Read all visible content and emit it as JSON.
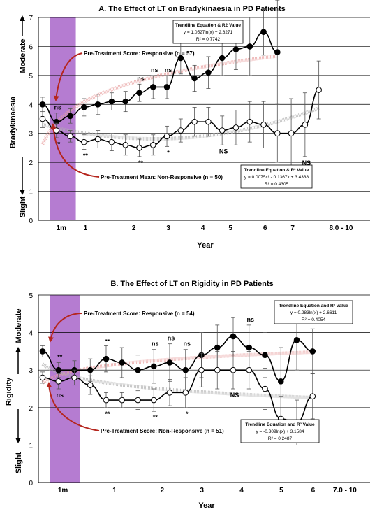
{
  "chart_data": [
    {
      "type": "line",
      "title": "A. The Effect of LT on Bradykinaesia in PD Patients",
      "xlabel": "Year",
      "ylabel": "Bradykinaesia",
      "ylim": [
        0,
        7
      ],
      "yticks": [
        0,
        1,
        2,
        3,
        4,
        5,
        6,
        7
      ],
      "severity_labels": {
        "top": "Moderate",
        "bottom": "Slight"
      },
      "x_tick_labels": [
        "1m",
        "1",
        "2",
        "3",
        "4",
        "5",
        "6",
        "7",
        "8.0 - 10"
      ],
      "x_tick_positions": [
        0.75,
        2.5,
        6,
        8.5,
        11,
        13,
        15.5,
        17.5,
        21
      ],
      "xlim": [
        0,
        23
      ],
      "band": [
        0,
        2
      ],
      "grid": true,
      "series": [
        {
          "name": "Responsive",
          "fill": "#000000",
          "x": [
            0,
            1,
            2,
            3,
            4,
            5,
            6,
            7,
            8,
            9,
            10,
            11,
            12,
            13,
            14,
            15,
            16,
            17,
            18
          ],
          "y": [
            4.0,
            3.4,
            3.6,
            3.9,
            4.0,
            4.1,
            4.1,
            4.4,
            4.6,
            4.6,
            5.6,
            4.9,
            5.1,
            5.6,
            5.9,
            6.0,
            6.5,
            5.8,
            null
          ],
          "err": [
            0.25,
            0.3,
            0.25,
            0.3,
            0.35,
            0.3,
            0.35,
            0.3,
            0.4,
            0.4,
            0.55,
            0.45,
            0.55,
            0.6,
            0.7,
            1.0,
            0.8,
            1.8,
            0
          ],
          "labels": [
            null,
            "ns",
            null,
            null,
            null,
            null,
            null,
            "ns",
            "ns",
            "ns",
            null,
            null,
            null,
            "ns",
            null,
            null,
            null,
            null,
            null
          ]
        },
        {
          "name": "Non-Responsive",
          "fill": "#ffffff",
          "x": [
            0,
            1,
            2,
            3,
            4,
            5,
            6,
            7,
            8,
            9,
            10,
            11,
            12,
            13,
            14,
            15,
            16,
            17,
            18,
            19,
            20
          ],
          "y": [
            3.5,
            3.1,
            2.9,
            2.7,
            2.8,
            2.7,
            2.6,
            2.5,
            2.6,
            2.9,
            3.1,
            3.4,
            3.4,
            3.1,
            3.2,
            3.4,
            3.3,
            3.0,
            3.0,
            3.3,
            4.5
          ],
          "err": [
            0.3,
            0.25,
            0.2,
            0.25,
            0.3,
            0.3,
            0.35,
            0.3,
            0.35,
            0.35,
            0.4,
            0.5,
            0.5,
            0.5,
            0.6,
            0.7,
            0.8,
            1.0,
            1.2,
            1.1,
            1.0
          ],
          "labels": [
            null,
            "**",
            null,
            "**",
            null,
            null,
            null,
            "**",
            null,
            "*",
            null,
            null,
            null,
            "NS",
            null,
            null,
            null,
            "NS",
            null,
            "NS",
            null
          ]
        }
      ],
      "trendlines": [
        {
          "series": "Responsive",
          "color": "#e8a0a0",
          "lines": [
            "Trendline Equation  & R2 Value",
            "y = 1.0527ln(x) + 2.6271",
            "R² = 0.7742"
          ]
        },
        {
          "series": "Non-Responsive",
          "color": "#b0b0b0",
          "lines": [
            "Trendline Equation  & R² Value",
            "y = 0.0075x² - 0.1367x + 3.4338",
            "R² = 0.4305"
          ]
        }
      ],
      "annotations": [
        "Pre-Treatment Score: Responsive (n = 57)",
        "Pre-Treatment Mean: Non-Responsive (n = 50)"
      ]
    },
    {
      "type": "line",
      "title": "B. The Effect of LT on Rigidity in PD Patients",
      "xlabel": "Year",
      "ylabel": "Rigidity",
      "ylim": [
        0,
        5
      ],
      "yticks": [
        0,
        1,
        2,
        3,
        4,
        5
      ],
      "severity_labels": {
        "top": "Moderate",
        "bottom": "Slight"
      },
      "x_tick_labels": [
        "1m",
        "1",
        "2",
        "3",
        "4",
        "5",
        "6",
        "7.0 - 10"
      ],
      "x_tick_positions": [
        0.75,
        4,
        7,
        9.5,
        12,
        14.5,
        16.5,
        18.5
      ],
      "xlim": [
        0,
        20
      ],
      "band": [
        0,
        2
      ],
      "grid": true,
      "series": [
        {
          "name": "Responsive",
          "fill": "#000000",
          "x": [
            0,
            1,
            2,
            3,
            4,
            5,
            6,
            7,
            8,
            9,
            10,
            11,
            12,
            13,
            14,
            15,
            16,
            17,
            18
          ],
          "y": [
            3.5,
            3.0,
            3.0,
            3.0,
            3.3,
            3.2,
            3.0,
            3.1,
            3.2,
            3.0,
            3.4,
            3.6,
            3.9,
            3.6,
            3.4,
            2.7,
            3.8,
            3.5,
            null
          ],
          "err": [
            0.15,
            0.2,
            0.25,
            0.3,
            0.35,
            0.4,
            0.4,
            0.45,
            0.5,
            0.55,
            0.6,
            0.6,
            0.5,
            0.6,
            0.6,
            0.9,
            0.8,
            0.6,
            0
          ],
          "labels": [
            null,
            "**",
            null,
            null,
            "▪▪",
            null,
            null,
            "ns",
            "ns",
            "ns",
            null,
            null,
            null,
            "ns",
            null,
            null,
            "▪▪",
            "▪▪",
            null
          ]
        },
        {
          "name": "Non-Responsive",
          "fill": "#ffffff",
          "x": [
            0,
            1,
            2,
            3,
            4,
            5,
            6,
            7,
            8,
            9,
            10,
            11,
            12,
            13,
            14,
            15,
            16,
            17
          ],
          "y": [
            2.8,
            2.7,
            2.8,
            2.6,
            2.2,
            2.2,
            2.2,
            2.2,
            2.4,
            2.4,
            3.0,
            3.0,
            3.0,
            3.0,
            2.5,
            1.7,
            1.6,
            2.3
          ],
          "err": [
            0.15,
            0.2,
            0.2,
            0.25,
            0.2,
            0.2,
            0.25,
            0.3,
            0.35,
            0.4,
            0.45,
            0.5,
            0.5,
            0.5,
            0.55,
            0.6,
            0.6,
            0.6
          ],
          "labels": [
            null,
            "ns",
            null,
            null,
            "**",
            null,
            null,
            "**",
            null,
            "*",
            null,
            null,
            "NS",
            null,
            null,
            null,
            null,
            "**"
          ]
        }
      ],
      "trendlines": [
        {
          "series": "Responsive",
          "color": "#e8a0a0",
          "lines": [
            "Trendline Equation and R² Value",
            "y = 0.283ln(x) + 2.6611",
            "R² = 0.4054"
          ]
        },
        {
          "series": "Non-Responsive",
          "color": "#b0b0b0",
          "lines": [
            "Trendline Equation and R² Value",
            "y = -0.309ln(x) + 3.1584",
            "R² = 0.2487"
          ]
        }
      ],
      "annotations": [
        "Pre-Treatment Score: Responsive (n = 54)",
        "Pre-Treatment Score: Non-Responsive (n = 51)"
      ]
    }
  ],
  "colors": {
    "band": "#a865c9",
    "responsive_trend": "#e8a0a0",
    "nonresponsive_trend": "#b0b0b0",
    "arrow": "#b5261e",
    "grid": "#000000"
  }
}
